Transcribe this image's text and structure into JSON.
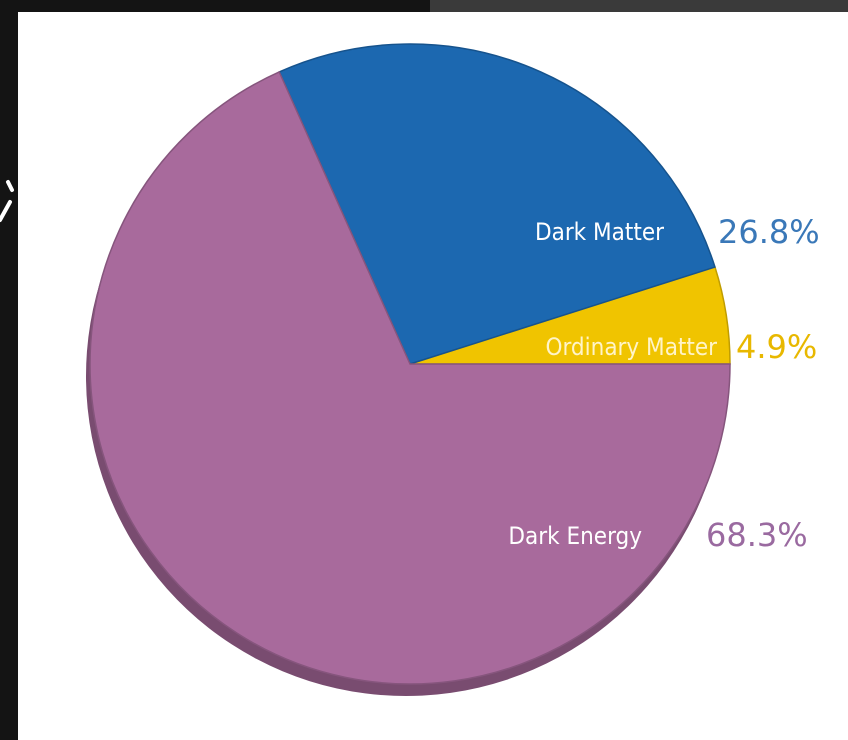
{
  "chart_data": {
    "type": "pie",
    "title": "",
    "start_angle_deg": 0,
    "direction": "counterclockwise",
    "slices": [
      {
        "label": "Ordinary Matter",
        "value": 4.9,
        "value_label": "4.9%",
        "color": "#f0c400",
        "pct_color": "#e8b800"
      },
      {
        "label": "Dark Matter",
        "value": 26.8,
        "value_label": "26.8%",
        "color": "#1c68b0",
        "pct_color": "#3a78b8"
      },
      {
        "label": "Dark Energy",
        "value": 68.3,
        "value_label": "68.3%",
        "color": "#a86a9c",
        "pct_color": "#9a6aa0"
      }
    ]
  }
}
